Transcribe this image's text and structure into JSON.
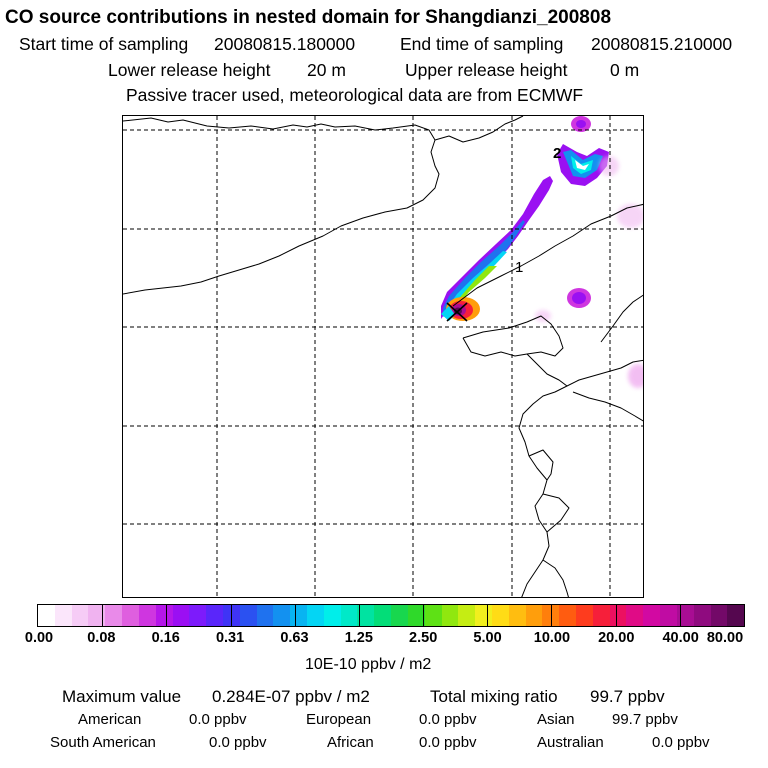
{
  "header": {
    "title": "CO  source contributions in nested domain for Shangdianzi_200808",
    "start_label": "Start time of sampling",
    "start_value": "20080815.180000",
    "end_label": "End time of sampling",
    "end_value": "20080815.210000",
    "lower_label": "Lower release height",
    "lower_value": "20 m",
    "upper_label": "Upper release height",
    "upper_value": "0 m",
    "note": "Passive tracer used, meteorological data are from ECMWF"
  },
  "map": {
    "labels": [
      "1",
      "2"
    ],
    "release_marker": "x-marker"
  },
  "colorbar": {
    "ticks": [
      "0.00",
      "0.08",
      "0.16",
      "0.31",
      "0.63",
      "1.25",
      "2.50",
      "5.00",
      "10.00",
      "20.00",
      "40.00",
      "80.00"
    ],
    "unit": "10E-10 ppbv / m2",
    "colors": [
      "#ffffff",
      "#fbe6fb",
      "#f6ccf6",
      "#f0b3f0",
      "#e98ae9",
      "#df5fdf",
      "#cf36e0",
      "#b516e9",
      "#9b0ff3",
      "#7d1bfb",
      "#5a26fa",
      "#3f34f6",
      "#2b51f1",
      "#1f72ef",
      "#1391f0",
      "#08b4f1",
      "#04d5f4",
      "#00eeea",
      "#00e9c8",
      "#00e3a1",
      "#03dd78",
      "#18d74e",
      "#2fd92a",
      "#5ee115",
      "#90e70f",
      "#c5ed13",
      "#f1ef1e",
      "#ffdc16",
      "#ffbd10",
      "#ff9e0c",
      "#ff7f0c",
      "#ff5c10",
      "#fe3c1e",
      "#f61f3a",
      "#ec1060",
      "#e00b86",
      "#d209a2",
      "#c00ca3",
      "#a80d93",
      "#8f0b7f",
      "#730968",
      "#55074f"
    ]
  },
  "summary": {
    "max_label": "Maximum value",
    "max_value": "0.284E-07 ppbv / m2",
    "total_label": "Total mixing ratio",
    "total_value": "99.7 ppbv",
    "american_label": "American",
    "american_value": "0.0 ppbv",
    "european_label": "European",
    "european_value": "0.0 ppbv",
    "asian_label": "Asian",
    "asian_value": "99.7 ppbv",
    "south_american_label": "South American",
    "south_american_value": "0.0 ppbv",
    "african_label": "African",
    "african_value": "0.0 ppbv",
    "australian_label": "Australian",
    "australian_value": "0.0 ppbv"
  }
}
